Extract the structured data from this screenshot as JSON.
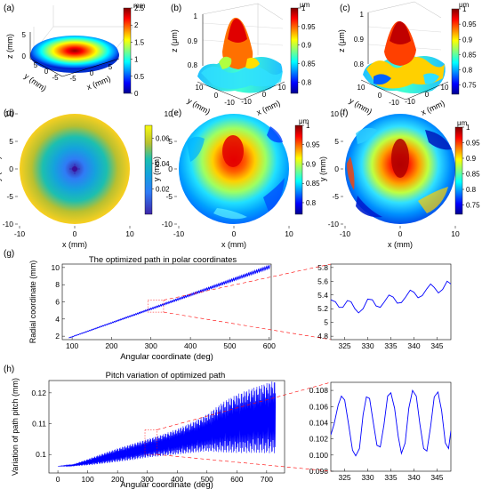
{
  "figure": {
    "panel_letters": [
      "(a)",
      "(b)",
      "(c)",
      "(d)",
      "(e)",
      "(f)",
      "(g)",
      "(h)"
    ],
    "colors": {
      "jet_scale": [
        "#00008f",
        "#0000ff",
        "#0080ff",
        "#00ffff",
        "#80ff80",
        "#ffff00",
        "#ff8000",
        "#ff0000",
        "#800000"
      ],
      "parula_scale": [
        "#3e26a8",
        "#4545e8",
        "#2f7cf6",
        "#14a3dc",
        "#1cbfb0",
        "#5ec962",
        "#c2c22c",
        "#f7d13d",
        "#f9fb0e"
      ],
      "path_line": "#0000ff",
      "zoom_box": "#ff0000"
    }
  },
  "chart_data": [
    {
      "panel": "(a)",
      "type": "surface3d",
      "zlabel": "z (mm)",
      "ylabel": "y (mm)",
      "xlabel": "x (mm)",
      "zticks": [
        "0",
        "5"
      ],
      "yticks": [
        "5",
        "0",
        "-5"
      ],
      "xticks": [
        "-5",
        "0",
        "5"
      ],
      "colorbar": {
        "unit": "mm",
        "ticks": [
          "2.5",
          "2",
          "1.5",
          "1",
          "0.5",
          "0"
        ],
        "range": [
          0,
          2.5
        ]
      }
    },
    {
      "panel": "(b)",
      "type": "surface3d",
      "zlabel": "z (μm)",
      "ylabel": "y (mm)",
      "xlabel": "x (mm)",
      "zticks": [
        "1",
        "0.9",
        "0.8"
      ],
      "yticks": [
        "10",
        "0",
        "-10"
      ],
      "xticks": [
        "-10",
        "0",
        "10"
      ],
      "colorbar": {
        "unit": "μm",
        "ticks": [
          "1",
          "0.95",
          "0.9",
          "0.85",
          "0.8"
        ],
        "range": [
          0.77,
          1
        ]
      }
    },
    {
      "panel": "(c)",
      "type": "surface3d",
      "zlabel": "z (μm)",
      "ylabel": "y (mm)",
      "xlabel": "x (mm)",
      "zticks": [
        "1",
        "0.9",
        "0.8"
      ],
      "yticks": [
        "10",
        "0",
        "-10"
      ],
      "xticks": [
        "-10",
        "0",
        "10"
      ],
      "colorbar": {
        "unit": "μm",
        "ticks": [
          "1",
          "0.95",
          "0.9",
          "0.85",
          "0.8",
          "0.75"
        ],
        "range": [
          0.72,
          1
        ]
      }
    },
    {
      "panel": "(d)",
      "type": "heatmap",
      "xlabel": "x (mm)",
      "ylabel": "y (mm)",
      "xticks": [
        "-10",
        "0",
        "10"
      ],
      "yticks": [
        "10",
        "5",
        "0",
        "-5",
        "-10"
      ],
      "xlim": [
        -10,
        10
      ],
      "ylim": [
        -10,
        10
      ],
      "colorbar": {
        "unit": "",
        "ticks": [
          "0.06",
          "0.04",
          "0.02"
        ],
        "range": [
          0,
          0.07
        ]
      }
    },
    {
      "panel": "(e)",
      "type": "heatmap",
      "xlabel": "x (mm)",
      "ylabel": "y (mm)",
      "xticks": [
        "-10",
        "0",
        "10"
      ],
      "yticks": [
        "10",
        "5",
        "0",
        "-5",
        "-10"
      ],
      "xlim": [
        -10,
        10
      ],
      "ylim": [
        -10,
        10
      ],
      "colorbar": {
        "unit": "μm",
        "ticks": [
          "1",
          "0.95",
          "0.9",
          "0.85",
          "0.8"
        ],
        "range": [
          0.77,
          1
        ]
      }
    },
    {
      "panel": "(f)",
      "type": "heatmap",
      "xlabel": "x (mm)",
      "ylabel": "y (mm)",
      "xticks": [
        "-10",
        "0",
        "10"
      ],
      "yticks": [
        "10",
        "5",
        "0",
        "-5",
        "-10"
      ],
      "xlim": [
        -10,
        10
      ],
      "ylim": [
        -10,
        10
      ],
      "colorbar": {
        "unit": "μm",
        "ticks": [
          "1",
          "0.95",
          "0.9",
          "0.85",
          "0.8",
          "0.75"
        ],
        "range": [
          0.72,
          1
        ]
      }
    },
    {
      "panel": "(g)",
      "type": "line",
      "title": "The optimized path in polar coordinates",
      "xlabel": "Angular coordinate (deg)",
      "ylabel": "Radial coordinate (mm)",
      "xlim": [
        75,
        605
      ],
      "ylim": [
        1.6,
        10.4
      ],
      "xticks": [
        100,
        200,
        300,
        400,
        500,
        600
      ],
      "yticks": [
        2,
        4,
        6,
        8,
        10
      ],
      "zoom_box": {
        "x": [
          292,
          332
        ],
        "y": [
          4.8,
          6.2
        ]
      },
      "zoom": {
        "xlim": [
          322,
          348
        ],
        "ylim": [
          4.75,
          5.85
        ],
        "xticks": [
          325,
          330,
          335,
          340,
          345
        ],
        "yticks": [
          4.8,
          5,
          5.2,
          5.4,
          5.6,
          5.8
        ],
        "points": [
          [
            322,
            5.33
          ],
          [
            323,
            5.3
          ],
          [
            323.8,
            5.22
          ],
          [
            324.6,
            5.22
          ],
          [
            325.6,
            5.32
          ],
          [
            326.4,
            5.3
          ],
          [
            327.2,
            5.2
          ],
          [
            328,
            5.14
          ],
          [
            329,
            5.2
          ],
          [
            330,
            5.34
          ],
          [
            331,
            5.33
          ],
          [
            331.8,
            5.24
          ],
          [
            332.7,
            5.22
          ],
          [
            333.6,
            5.3
          ],
          [
            334.6,
            5.4
          ],
          [
            335.5,
            5.37
          ],
          [
            336.4,
            5.28
          ],
          [
            337.3,
            5.29
          ],
          [
            338.2,
            5.37
          ],
          [
            339.2,
            5.47
          ],
          [
            340,
            5.44
          ],
          [
            340.9,
            5.36
          ],
          [
            341.8,
            5.39
          ],
          [
            342.8,
            5.49
          ],
          [
            343.6,
            5.56
          ],
          [
            344.4,
            5.51
          ],
          [
            345.3,
            5.43
          ],
          [
            346.2,
            5.48
          ],
          [
            347.2,
            5.6
          ],
          [
            348,
            5.56
          ]
        ]
      }
    },
    {
      "panel": "(h)",
      "type": "line",
      "title": "Pitch variation of optimized path",
      "xlabel": "Angular coordinate (deg)",
      "ylabel": "Variation of path pitch (mm)",
      "xlim": [
        -30,
        760
      ],
      "ylim": [
        0.094,
        0.124
      ],
      "xticks": [
        0,
        100,
        200,
        300,
        400,
        500,
        600,
        700
      ],
      "yticks": [
        0.1,
        0.11,
        0.12
      ],
      "envelope": {
        "x": [
          0,
          50,
          100,
          150,
          200,
          250,
          300,
          350,
          400,
          450,
          500,
          530,
          560,
          600,
          650,
          700,
          730
        ],
        "upper": [
          0.0962,
          0.0968,
          0.0985,
          0.1003,
          0.102,
          0.1035,
          0.105,
          0.1065,
          0.1083,
          0.1105,
          0.113,
          0.1153,
          0.1175,
          0.1195,
          0.1215,
          0.1232,
          0.124
        ],
        "lower": [
          0.0962,
          0.0962,
          0.0965,
          0.097,
          0.0976,
          0.0982,
          0.099,
          0.0995,
          0.1,
          0.1005,
          0.101,
          0.1008,
          0.1006,
          0.1005,
          0.1005,
          0.1004,
          0.1004
        ]
      },
      "zoom_box": {
        "x": [
          292,
          332
        ],
        "y": [
          0.1,
          0.108
        ]
      },
      "zoom": {
        "xlim": [
          322,
          348
        ],
        "ylim": [
          0.098,
          0.109
        ],
        "xticks": [
          325,
          330,
          335,
          340,
          345
        ],
        "yticks": [
          0.098,
          0.1,
          0.102,
          0.104,
          0.106,
          0.108
        ],
        "points": [
          [
            322,
            0.1025
          ],
          [
            322.7,
            0.1038
          ],
          [
            323.6,
            0.1062
          ],
          [
            324.3,
            0.1073
          ],
          [
            325,
            0.1068
          ],
          [
            325.8,
            0.104
          ],
          [
            326.7,
            0.1006
          ],
          [
            327.4,
            0.0999
          ],
          [
            328.2,
            0.1008
          ],
          [
            329,
            0.105
          ],
          [
            329.7,
            0.1072
          ],
          [
            330.4,
            0.107
          ],
          [
            331.2,
            0.104
          ],
          [
            332,
            0.1012
          ],
          [
            332.7,
            0.101
          ],
          [
            333.5,
            0.1037
          ],
          [
            334.3,
            0.1073
          ],
          [
            335,
            0.1077
          ],
          [
            335.8,
            0.1058
          ],
          [
            336.6,
            0.1023
          ],
          [
            337.3,
            0.1002
          ],
          [
            338.1,
            0.1015
          ],
          [
            338.9,
            0.1058
          ],
          [
            339.7,
            0.108
          ],
          [
            340.5,
            0.1073
          ],
          [
            341.3,
            0.1038
          ],
          [
            342.1,
            0.1008
          ],
          [
            342.8,
            0.1005
          ],
          [
            343.6,
            0.1035
          ],
          [
            344.4,
            0.1072
          ],
          [
            345.2,
            0.1078
          ],
          [
            346,
            0.1055
          ],
          [
            346.8,
            0.1015
          ],
          [
            347.5,
            0.1008
          ],
          [
            348,
            0.103
          ]
        ]
      }
    }
  ]
}
